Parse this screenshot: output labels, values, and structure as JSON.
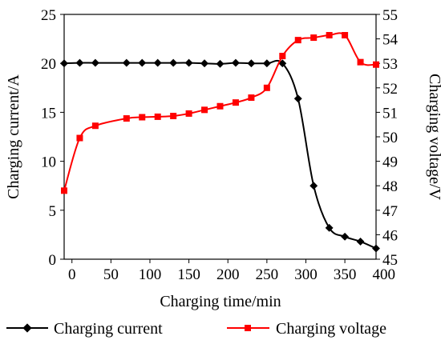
{
  "chart_data": {
    "type": "line",
    "xlabel": "Charging time/min",
    "ylabel_left": "Charging current/A",
    "ylabel_right": "Charging voltage/V",
    "xlim": [
      -10,
      390
    ],
    "ylim_left": [
      0,
      25
    ],
    "ylim_right": [
      45,
      55
    ],
    "x_ticks": [
      0,
      50,
      100,
      150,
      200,
      250,
      300,
      350,
      400
    ],
    "y_left_ticks": [
      0,
      5,
      10,
      15,
      20,
      25
    ],
    "y_right_ticks": [
      45,
      46,
      47,
      48,
      49,
      50,
      51,
      52,
      53,
      54,
      55
    ],
    "grid": false,
    "legend_position": "bottom",
    "series": [
      {
        "name": "Charging current",
        "axis": "left",
        "color": "#000000",
        "marker": "diamond",
        "points": [
          [
            -10,
            20
          ],
          [
            10,
            20.05
          ],
          [
            30,
            20.05
          ],
          [
            70,
            20.05
          ],
          [
            90,
            20.05
          ],
          [
            110,
            20.05
          ],
          [
            130,
            20.05
          ],
          [
            150,
            20.05
          ],
          [
            170,
            20.0
          ],
          [
            190,
            19.95
          ],
          [
            210,
            20.05
          ],
          [
            230,
            20.0
          ],
          [
            250,
            20.0
          ],
          [
            270,
            20.0
          ],
          [
            290,
            16.4
          ],
          [
            310,
            7.5
          ],
          [
            330,
            3.2
          ],
          [
            350,
            2.3
          ],
          [
            370,
            1.8
          ],
          [
            390,
            1.1
          ]
        ]
      },
      {
        "name": "Charging voltage",
        "axis": "right",
        "color": "#ff0000",
        "marker": "square",
        "points": [
          [
            -10,
            47.8
          ],
          [
            10,
            49.95
          ],
          [
            30,
            50.45
          ],
          [
            70,
            50.75
          ],
          [
            90,
            50.8
          ],
          [
            110,
            50.82
          ],
          [
            130,
            50.85
          ],
          [
            150,
            50.95
          ],
          [
            170,
            51.1
          ],
          [
            190,
            51.25
          ],
          [
            210,
            51.4
          ],
          [
            230,
            51.6
          ],
          [
            250,
            52.0
          ],
          [
            270,
            53.3
          ],
          [
            290,
            53.95
          ],
          [
            310,
            54.05
          ],
          [
            330,
            54.15
          ],
          [
            350,
            54.15
          ],
          [
            370,
            53.05
          ],
          [
            390,
            52.95
          ]
        ]
      }
    ]
  }
}
